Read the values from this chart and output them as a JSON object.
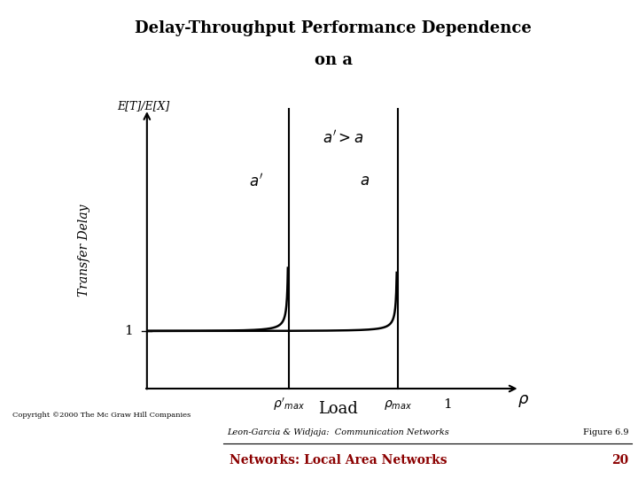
{
  "title_line1": "Delay-Throughput Performance Dependence",
  "title_line2": "on a",
  "title_bg_color": "#3dba91",
  "title_text_color": "#000000",
  "ylabel": "Transfer Delay",
  "y_axis_label_top": "E[T]/E[X]",
  "x_bottom_label": "Load",
  "rho_prime_max": 0.43,
  "rho_max": 0.76,
  "rho_one": 0.91,
  "bg_color": "#ffffff",
  "curve_color": "#000000",
  "line_width": 1.8,
  "footer_copyright": "Copyright ©2000 The Mc Graw Hill Companies",
  "footer_center": "Leon-Garcia & Widjaja:  Communication Networks",
  "footer_right": "Figure 6.9",
  "footer_bottom_center": "Networks: Local Area Networks",
  "footer_bottom_right": "20",
  "footer_bottom_color": "#8b0000"
}
